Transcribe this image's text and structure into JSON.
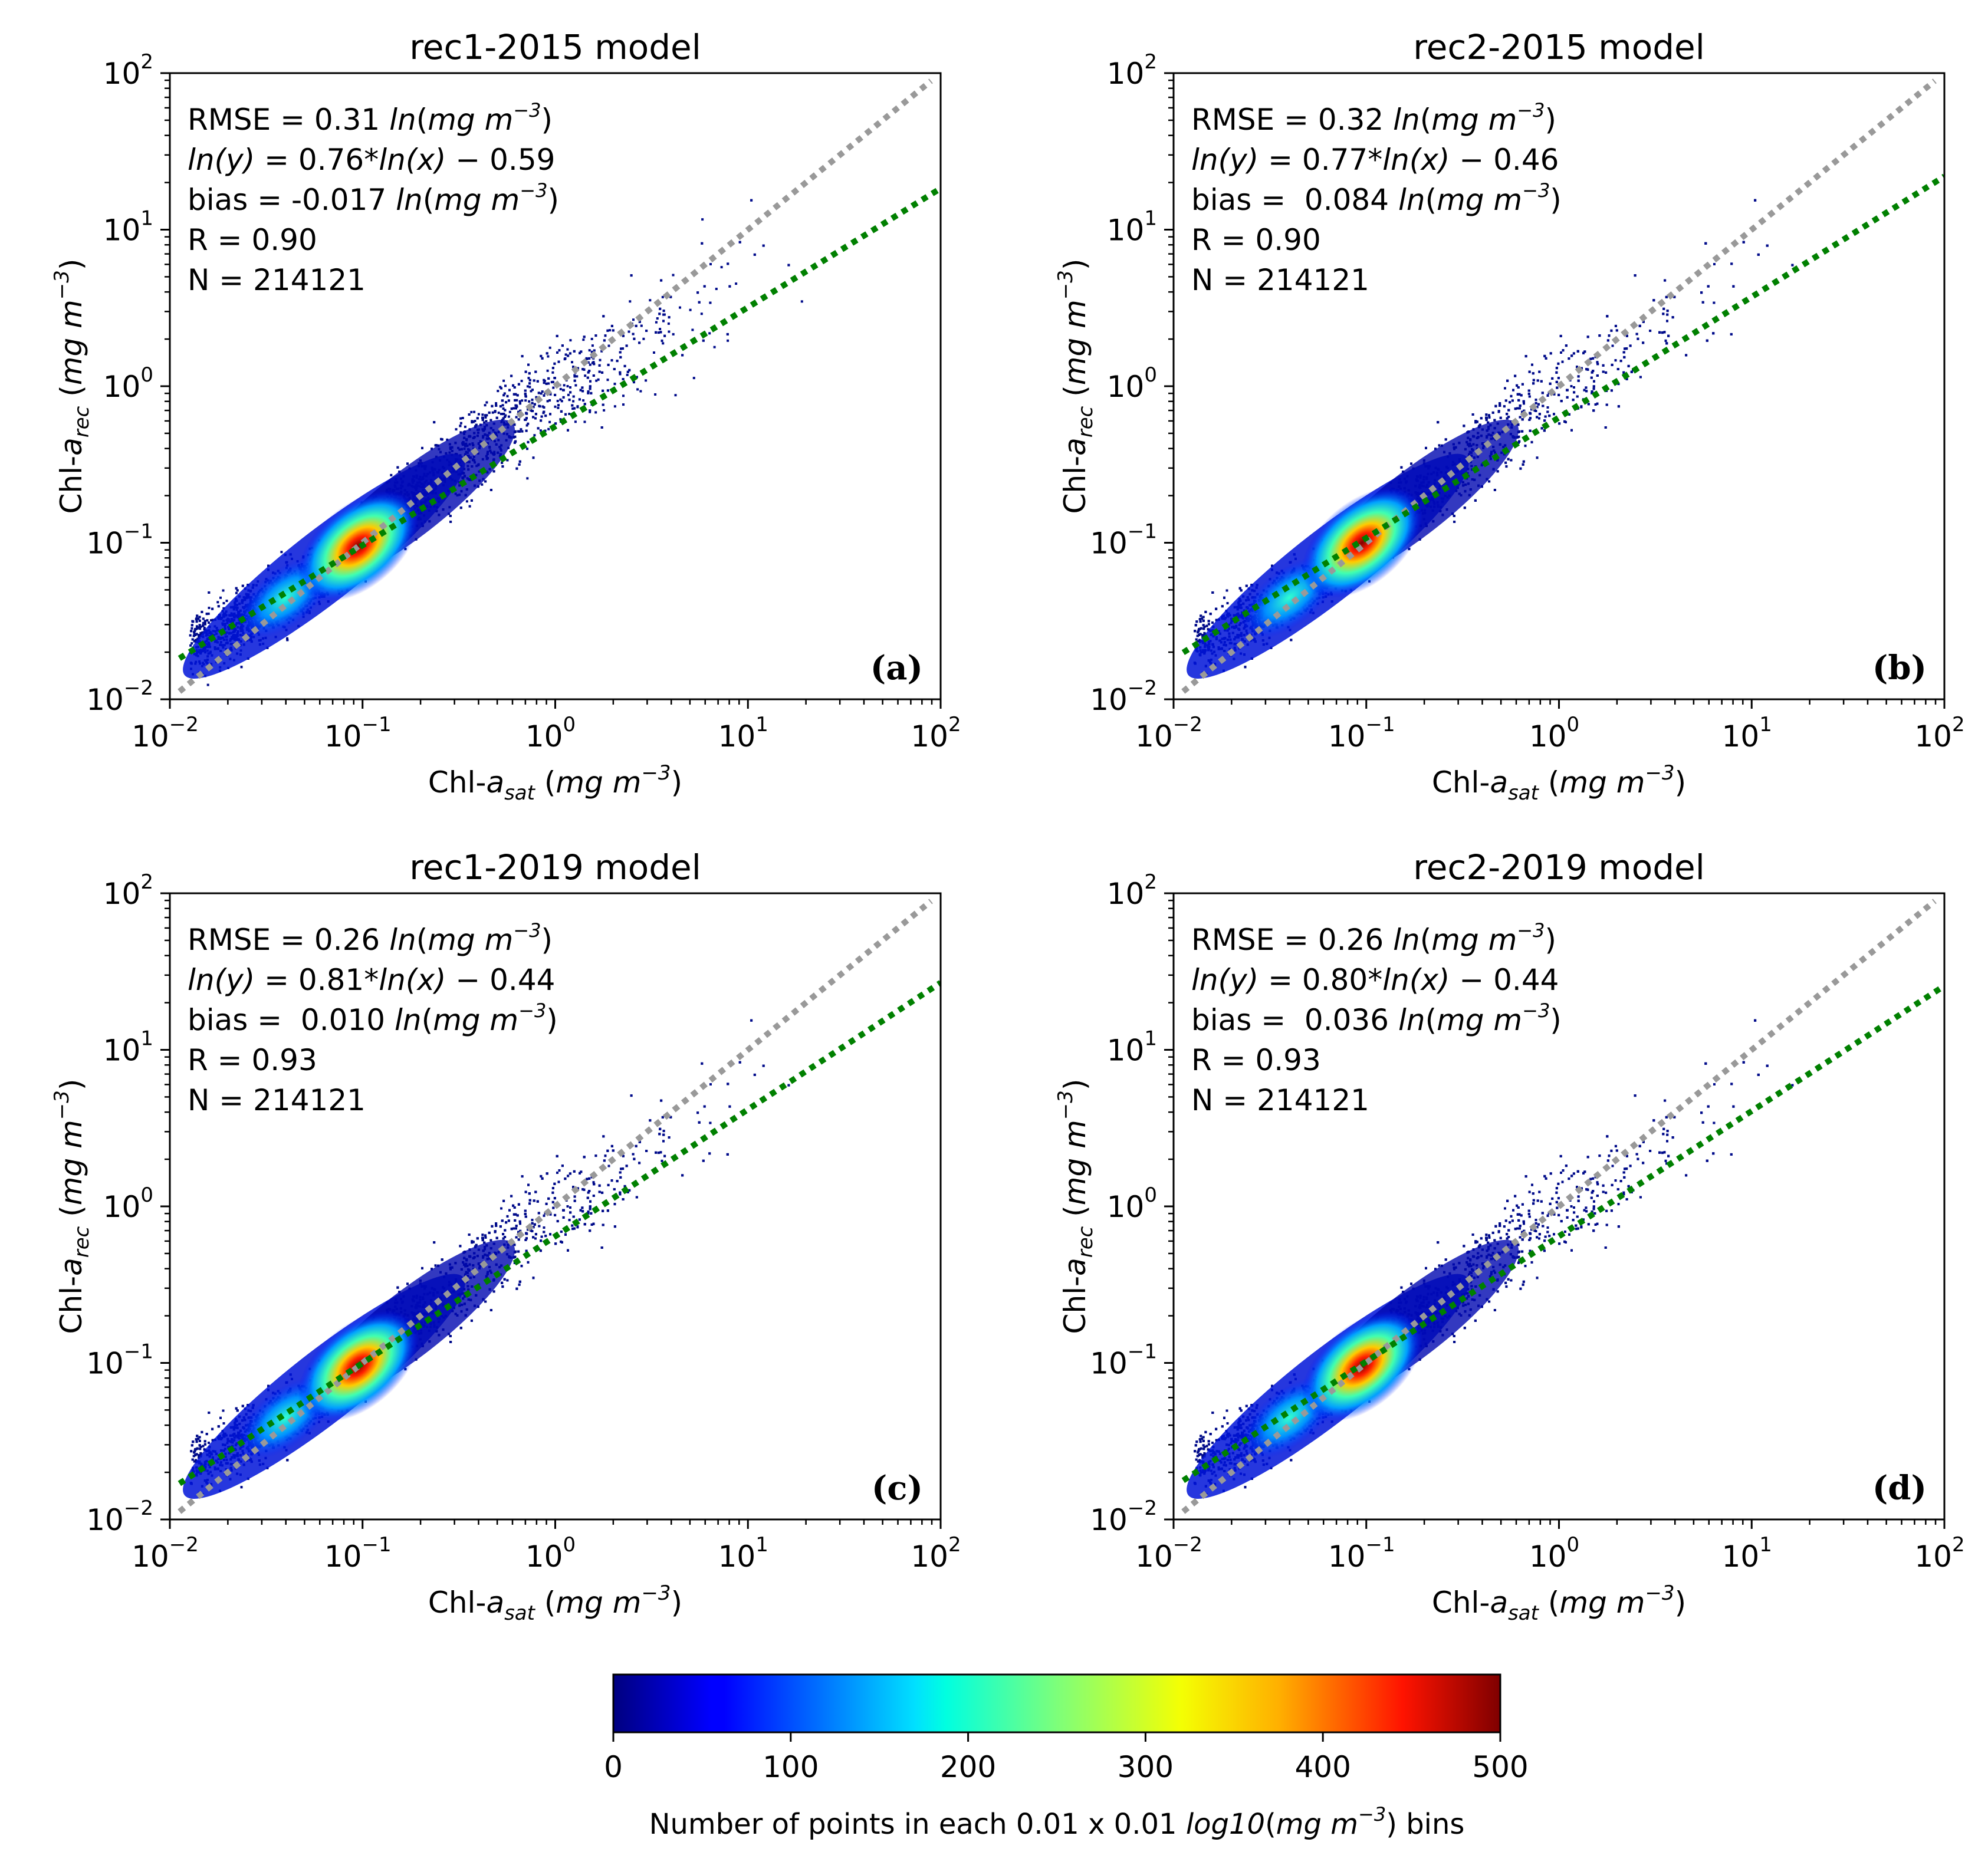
{
  "colorbar": {
    "min": 0,
    "max": 500,
    "ticks": [
      0,
      100,
      200,
      300,
      400,
      500
    ],
    "tick_labels": [
      "0",
      "100",
      "200",
      "300",
      "400",
      "500"
    ],
    "label_parts": [
      "Number of points in each 0.01 x 0.01 ",
      "log10",
      "(",
      "mg m",
      "−3",
      ") bins"
    ],
    "colormap": "jet"
  },
  "shared_axis_text": {
    "x_label_parts": [
      "Chl-",
      "a",
      "sat",
      " (",
      "mg m",
      "−3",
      ")"
    ],
    "y_label_parts": [
      "Chl-",
      "a",
      "rec",
      " (",
      "mg m",
      "−3",
      ")"
    ],
    "tick_base": "10",
    "tick_exponents": [
      "−2",
      "−1",
      "0",
      "1",
      "2"
    ]
  },
  "stat_text": {
    "rmse_prefix": "RMSE = ",
    "ln_open": "ln",
    "unit_open": "(",
    "unit_mg": "mg m",
    "unit_exp": "−3",
    "unit_close": ")",
    "eq_ln": "ln",
    "eq_y": "(y)",
    "eq_eq": " = ",
    "eq_star": "*",
    "eq_x": "(x)",
    "bias_prefix": "bias = ",
    "r_prefix": "R = ",
    "n_prefix": "N = "
  },
  "chart_data": [
    {
      "type": "scatter",
      "subtype": "2D density histogram (log-log)",
      "title": "rec1-2015 model",
      "panel_label": "(a)",
      "xscale": "log",
      "yscale": "log",
      "xlim": [
        0.01,
        100
      ],
      "ylim": [
        0.01,
        100
      ],
      "stats": {
        "rmse": "0.31",
        "slope": "0.76",
        "intercept": "− 0.59",
        "bias": "-0.017",
        "r": "0.90",
        "n": "214121"
      },
      "one_to_one_line": {
        "color": "#999999",
        "style": "dotted"
      },
      "fit_line": {
        "color": "#008000",
        "style": "dotted",
        "slope": 0.76,
        "intercept": -0.59
      },
      "density_peak": {
        "x": 0.095,
        "y": 0.095
      }
    },
    {
      "type": "scatter",
      "subtype": "2D density histogram (log-log)",
      "title": "rec2-2015 model",
      "panel_label": "(b)",
      "xscale": "log",
      "yscale": "log",
      "xlim": [
        0.01,
        100
      ],
      "ylim": [
        0.01,
        100
      ],
      "stats": {
        "rmse": "0.32",
        "slope": "0.77",
        "intercept": "− 0.46",
        "bias": " 0.084",
        "r": "0.90",
        "n": "214121"
      },
      "one_to_one_line": {
        "color": "#999999",
        "style": "dotted"
      },
      "fit_line": {
        "color": "#008000",
        "style": "dotted",
        "slope": 0.77,
        "intercept": -0.46
      },
      "density_peak": {
        "x": 0.095,
        "y": 0.1
      }
    },
    {
      "type": "scatter",
      "subtype": "2D density histogram (log-log)",
      "title": "rec1-2019 model",
      "panel_label": "(c)",
      "xscale": "log",
      "yscale": "log",
      "xlim": [
        0.01,
        100
      ],
      "ylim": [
        0.01,
        100
      ],
      "stats": {
        "rmse": "0.26",
        "slope": "0.81",
        "intercept": "− 0.44",
        "bias": " 0.010",
        "r": "0.93",
        "n": "214121"
      },
      "one_to_one_line": {
        "color": "#999999",
        "style": "dotted"
      },
      "fit_line": {
        "color": "#008000",
        "style": "dotted",
        "slope": 0.81,
        "intercept": -0.44
      },
      "density_peak": {
        "x": 0.095,
        "y": 0.095
      }
    },
    {
      "type": "scatter",
      "subtype": "2D density histogram (log-log)",
      "title": "rec2-2019 model",
      "panel_label": "(d)",
      "xscale": "log",
      "yscale": "log",
      "xlim": [
        0.01,
        100
      ],
      "ylim": [
        0.01,
        100
      ],
      "stats": {
        "rmse": "0.26",
        "slope": "0.80",
        "intercept": "− 0.44",
        "bias": " 0.036",
        "r": "0.93",
        "n": "214121"
      },
      "one_to_one_line": {
        "color": "#999999",
        "style": "dotted"
      },
      "fit_line": {
        "color": "#008000",
        "style": "dotted",
        "slope": 0.8,
        "intercept": -0.44
      },
      "density_peak": {
        "x": 0.095,
        "y": 0.095
      }
    }
  ]
}
